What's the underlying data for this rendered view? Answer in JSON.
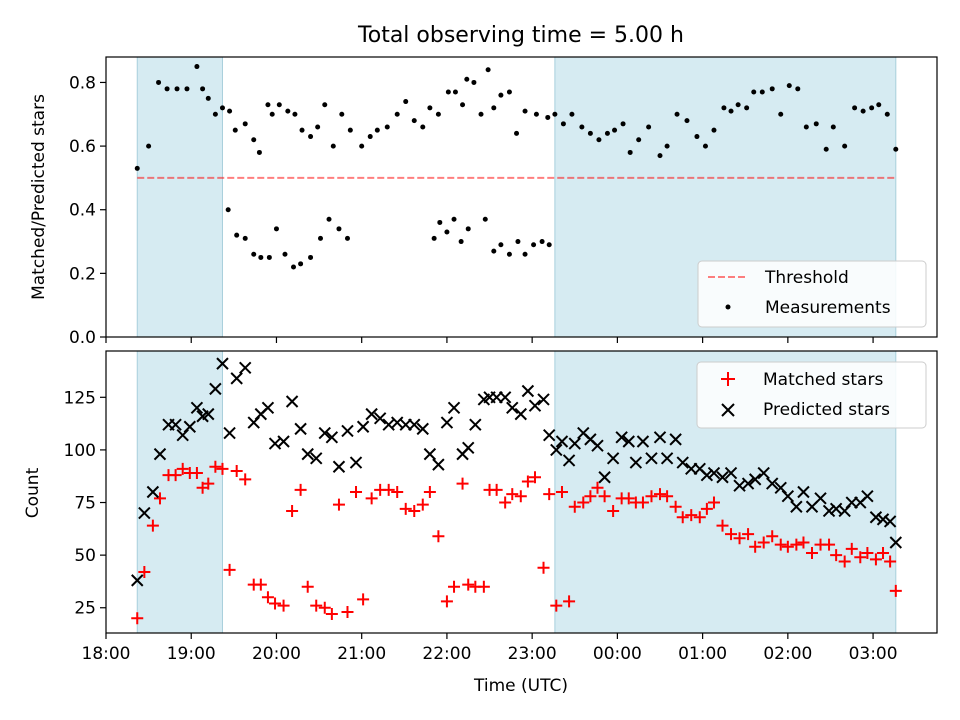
{
  "figure_title": "Total observing time = 5.00 h",
  "colors": {
    "shade": "#add8e6",
    "threshold": "#ff0000",
    "measurement": "#000000",
    "matched": "#ff0000",
    "predicted": "#000000"
  },
  "chart_data": [
    {
      "type": "scatter",
      "ylabel": "Matched/Predicted stars",
      "xlabel": "",
      "xlim": [
        "18:00",
        "03:45"
      ],
      "ylim": [
        0,
        0.88
      ],
      "yticks": [
        "0.0",
        "0.2",
        "0.4",
        "0.6",
        "0.8"
      ],
      "grid": false,
      "legend_position": "lower right",
      "shaded_intervals": [
        [
          "18:22",
          "19:22"
        ],
        [
          "23:16",
          "03:16"
        ]
      ],
      "threshold": {
        "name": "Threshold",
        "value": 0.5,
        "style": "dashed"
      },
      "series": [
        {
          "name": "Measurements",
          "x": [
            "18:22",
            "18:30",
            "18:37",
            "18:43",
            "18:50",
            "18:57",
            "19:04",
            "19:08",
            "19:12",
            "19:17",
            "19:22",
            "19:27",
            "19:31",
            "19:38",
            "19:44",
            "19:48",
            "19:54",
            "19:57",
            "20:02",
            "20:08",
            "20:13",
            "20:18",
            "20:24",
            "20:29",
            "20:34",
            "20:40",
            "20:46",
            "20:52",
            "21:00",
            "21:06",
            "21:11",
            "21:18",
            "21:25",
            "21:31",
            "21:37",
            "21:43",
            "21:48",
            "21:54",
            "22:01",
            "22:06",
            "22:11",
            "22:14",
            "22:19",
            "22:24",
            "22:29",
            "22:33",
            "22:38",
            "22:44",
            "22:49",
            "22:55",
            "23:03",
            "23:11",
            "23:16",
            "23:22",
            "23:28",
            "23:35",
            "23:41",
            "23:47",
            "23:53",
            "23:58",
            "00:04",
            "00:09",
            "00:15",
            "00:22",
            "00:30",
            "00:35",
            "00:42",
            "00:49",
            "00:56",
            "01:02",
            "01:08",
            "01:15",
            "01:20",
            "01:25",
            "01:31",
            "01:36",
            "01:42",
            "01:49",
            "01:55",
            "02:01",
            "02:07",
            "02:13",
            "02:20",
            "02:27",
            "02:32",
            "02:40",
            "02:47",
            "02:53",
            "02:59",
            "03:04",
            "03:10",
            "03:16",
            "19:26",
            "19:32",
            "19:38",
            "19:44",
            "19:49",
            "19:55",
            "20:00",
            "20:06",
            "20:12",
            "20:17",
            "20:24",
            "20:31",
            "20:37",
            "20:44",
            "20:50",
            "21:51",
            "21:55",
            "22:00",
            "22:05",
            "22:10",
            "22:15",
            "22:27",
            "22:33",
            "22:38",
            "22:44",
            "22:50",
            "22:55",
            "23:01",
            "23:07",
            "23:12"
          ],
          "y": [
            0.53,
            0.6,
            0.8,
            0.78,
            0.78,
            0.78,
            0.85,
            0.78,
            0.75,
            0.7,
            0.72,
            0.71,
            0.65,
            0.67,
            0.62,
            0.58,
            0.73,
            0.7,
            0.73,
            0.71,
            0.7,
            0.65,
            0.63,
            0.66,
            0.73,
            0.6,
            0.7,
            0.65,
            0.6,
            0.63,
            0.65,
            0.66,
            0.7,
            0.74,
            0.68,
            0.66,
            0.72,
            0.7,
            0.77,
            0.77,
            0.73,
            0.81,
            0.8,
            0.7,
            0.84,
            0.72,
            0.76,
            0.77,
            0.64,
            0.71,
            0.7,
            0.69,
            0.7,
            0.67,
            0.7,
            0.66,
            0.64,
            0.62,
            0.64,
            0.65,
            0.67,
            0.58,
            0.62,
            0.66,
            0.57,
            0.6,
            0.7,
            0.68,
            0.63,
            0.6,
            0.65,
            0.72,
            0.71,
            0.73,
            0.72,
            0.77,
            0.77,
            0.78,
            0.7,
            0.79,
            0.78,
            0.66,
            0.67,
            0.59,
            0.66,
            0.6,
            0.72,
            0.71,
            0.72,
            0.73,
            0.7,
            0.59,
            0.4,
            0.32,
            0.31,
            0.26,
            0.25,
            0.25,
            0.34,
            0.26,
            0.22,
            0.23,
            0.25,
            0.31,
            0.37,
            0.34,
            0.31,
            0.31,
            0.36,
            0.33,
            0.37,
            0.3,
            0.34,
            0.37,
            0.27,
            0.29,
            0.26,
            0.3,
            0.26,
            0.29,
            0.3,
            0.29
          ]
        }
      ]
    },
    {
      "type": "scatter",
      "ylabel": "Count",
      "xlabel": "Time (UTC)",
      "xlim": [
        "18:00",
        "03:45"
      ],
      "ylim": [
        13,
        147
      ],
      "yticks": [
        "25",
        "50",
        "75",
        "100",
        "125"
      ],
      "xticks": [
        "18:00",
        "19:00",
        "20:00",
        "21:00",
        "22:00",
        "23:00",
        "00:00",
        "01:00",
        "02:00",
        "03:00"
      ],
      "grid": false,
      "legend_position": "upper right",
      "shaded_intervals": [
        [
          "18:22",
          "19:22"
        ],
        [
          "23:16",
          "03:16"
        ]
      ],
      "series": [
        {
          "name": "Matched stars",
          "marker": "+",
          "x": [
            "18:22",
            "18:27",
            "18:33",
            "18:38",
            "18:44",
            "18:49",
            "18:54",
            "18:59",
            "19:04",
            "19:08",
            "19:12",
            "19:17",
            "19:22",
            "19:27",
            "19:32",
            "19:38",
            "19:44",
            "19:49",
            "19:54",
            "19:59",
            "20:05",
            "20:11",
            "20:17",
            "20:22",
            "20:28",
            "20:34",
            "20:39",
            "20:44",
            "20:50",
            "20:56",
            "21:01",
            "21:07",
            "21:13",
            "21:19",
            "21:25",
            "21:31",
            "21:37",
            "21:43",
            "21:48",
            "21:54",
            "22:00",
            "22:05",
            "22:11",
            "22:15",
            "22:20",
            "22:26",
            "22:30",
            "22:35",
            "22:41",
            "22:46",
            "22:52",
            "22:57",
            "23:02",
            "23:08",
            "23:12",
            "23:17",
            "23:21",
            "23:26",
            "23:30",
            "23:36",
            "23:41",
            "23:46",
            "23:51",
            "23:57",
            "00:03",
            "00:08",
            "00:13",
            "00:18",
            "00:24",
            "00:30",
            "00:35",
            "00:41",
            "00:46",
            "00:52",
            "00:58",
            "01:03",
            "01:08",
            "01:14",
            "01:20",
            "01:26",
            "01:32",
            "01:37",
            "01:43",
            "01:49",
            "01:55",
            "02:00",
            "02:06",
            "02:11",
            "02:17",
            "02:23",
            "02:29",
            "02:34",
            "02:40",
            "02:45",
            "02:51",
            "02:56",
            "03:02",
            "03:07",
            "03:12",
            "03:16"
          ],
          "y": [
            20,
            42,
            64,
            77,
            88,
            88,
            91,
            89,
            89,
            82,
            84,
            92,
            91,
            43,
            90,
            86,
            36,
            36,
            30,
            27,
            26,
            71,
            81,
            35,
            26,
            25,
            22,
            74,
            23,
            80,
            29,
            77,
            81,
            81,
            80,
            72,
            71,
            74,
            80,
            59,
            28,
            35,
            84,
            36,
            35,
            35,
            81,
            81,
            75,
            79,
            78,
            85,
            87,
            44,
            79,
            26,
            80,
            28,
            73,
            75,
            78,
            82,
            78,
            71,
            77,
            77,
            75,
            75,
            78,
            79,
            78,
            73,
            68,
            69,
            68,
            72,
            75,
            64,
            60,
            58,
            60,
            54,
            56,
            59,
            55,
            54,
            55,
            56,
            51,
            55,
            55,
            50,
            47,
            53,
            49,
            51,
            48,
            51,
            47,
            33
          ]
        },
        {
          "name": "Predicted stars",
          "marker": "x",
          "x": [
            "18:22",
            "18:27",
            "18:33",
            "18:38",
            "18:44",
            "18:49",
            "18:54",
            "18:59",
            "19:04",
            "19:08",
            "19:12",
            "19:17",
            "19:22",
            "19:27",
            "19:32",
            "19:38",
            "19:44",
            "19:49",
            "19:54",
            "19:59",
            "20:05",
            "20:11",
            "20:17",
            "20:22",
            "20:28",
            "20:34",
            "20:39",
            "20:44",
            "20:50",
            "20:56",
            "21:01",
            "21:07",
            "21:13",
            "21:19",
            "21:25",
            "21:31",
            "21:37",
            "21:43",
            "21:48",
            "21:54",
            "22:00",
            "22:05",
            "22:11",
            "22:15",
            "22:20",
            "22:26",
            "22:30",
            "22:35",
            "22:41",
            "22:46",
            "22:52",
            "22:57",
            "23:02",
            "23:08",
            "23:12",
            "23:17",
            "23:21",
            "23:26",
            "23:30",
            "23:36",
            "23:41",
            "23:46",
            "23:51",
            "23:57",
            "00:03",
            "00:08",
            "00:13",
            "00:18",
            "00:24",
            "00:30",
            "00:35",
            "00:41",
            "00:46",
            "00:52",
            "00:58",
            "01:03",
            "01:08",
            "01:14",
            "01:20",
            "01:26",
            "01:32",
            "01:37",
            "01:43",
            "01:49",
            "01:55",
            "02:00",
            "02:06",
            "02:11",
            "02:17",
            "02:23",
            "02:29",
            "02:34",
            "02:40",
            "02:45",
            "02:51",
            "02:56",
            "03:02",
            "03:07",
            "03:12",
            "03:16"
          ],
          "y": [
            38,
            70,
            80,
            98,
            112,
            112,
            107,
            111,
            120,
            116,
            117,
            129,
            141,
            108,
            134,
            139,
            113,
            117,
            120,
            103,
            104,
            123,
            110,
            98,
            96,
            108,
            106,
            92,
            109,
            94,
            111,
            117,
            115,
            112,
            113,
            112,
            112,
            110,
            98,
            93,
            113,
            120,
            98,
            101,
            112,
            124,
            125,
            125,
            125,
            120,
            117,
            128,
            121,
            124,
            107,
            100,
            104,
            95,
            103,
            108,
            105,
            102,
            87,
            96,
            106,
            104,
            94,
            104,
            96,
            106,
            96,
            105,
            94,
            91,
            91,
            88,
            89,
            87,
            89,
            83,
            84,
            86,
            89,
            84,
            82,
            78,
            73,
            80,
            73,
            77,
            71,
            72,
            71,
            75,
            75,
            78,
            68,
            67,
            66,
            56
          ]
        }
      ]
    }
  ]
}
